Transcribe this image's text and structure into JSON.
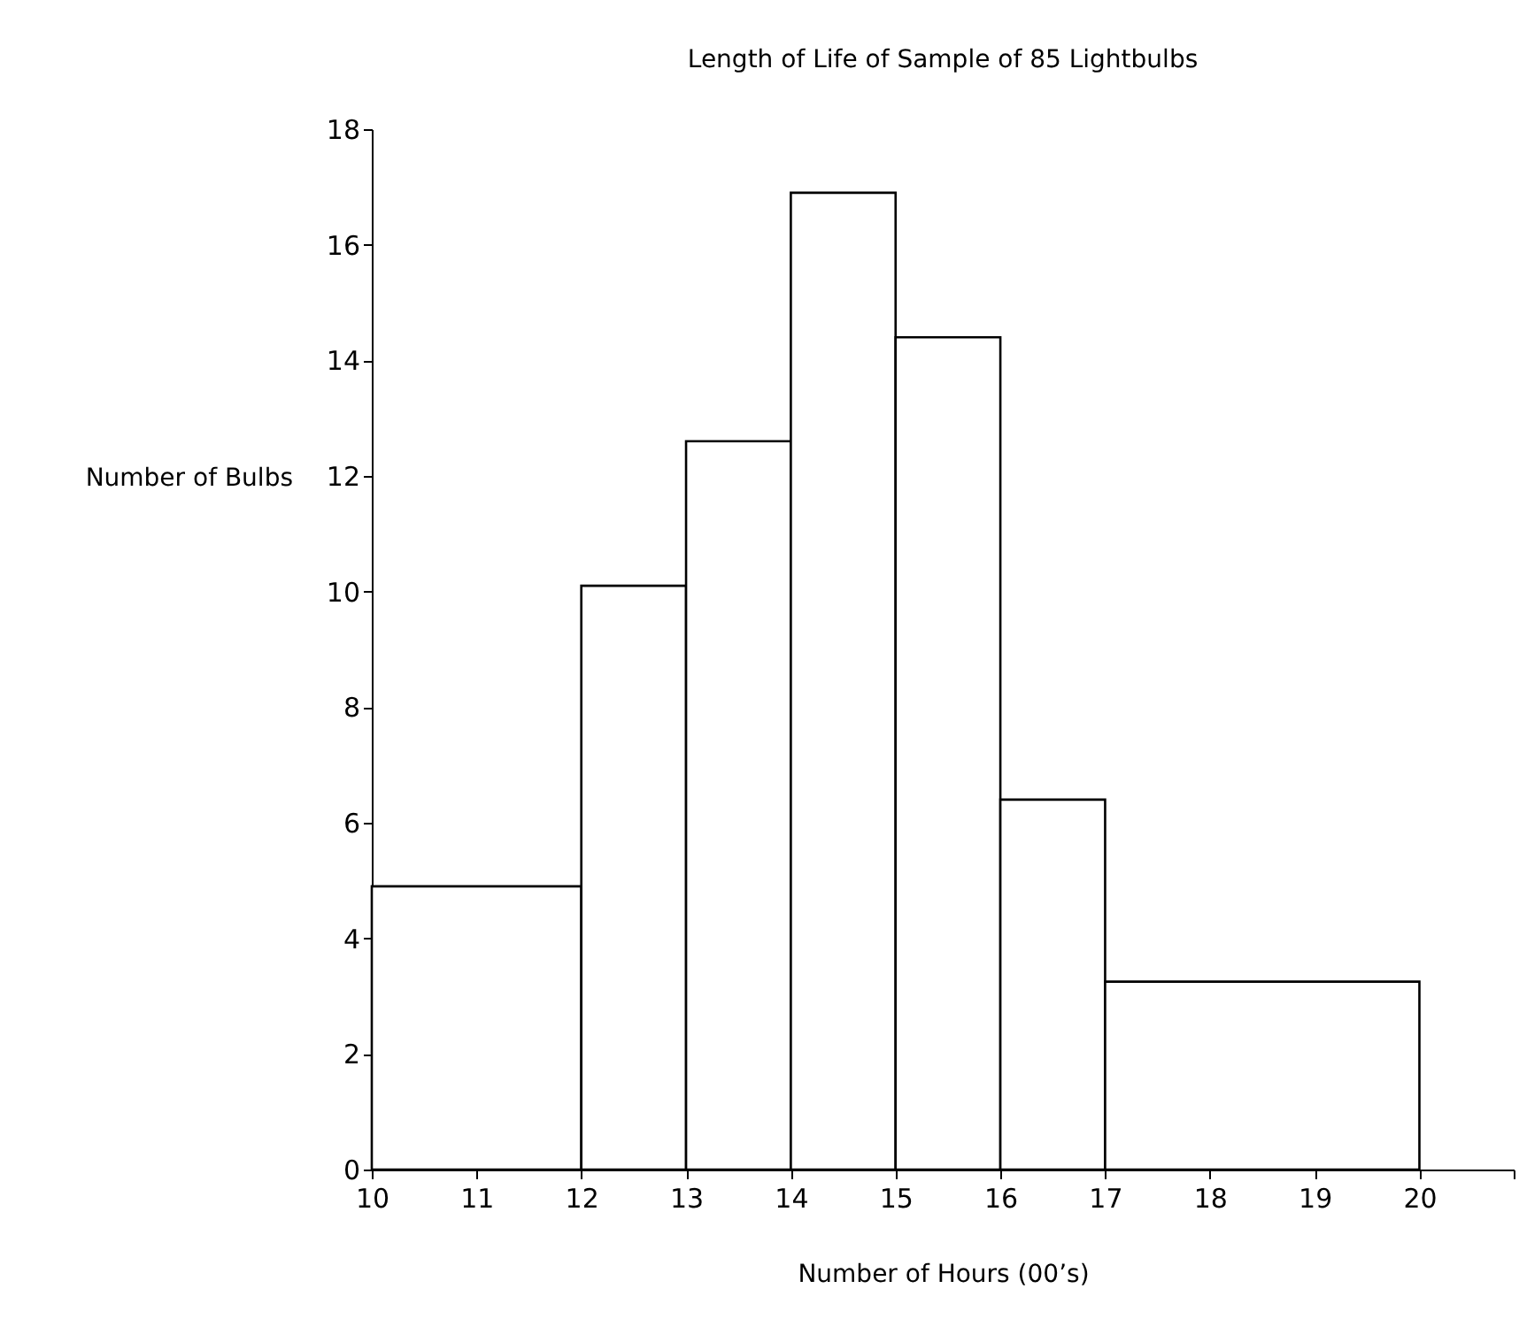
{
  "chart_data": {
    "type": "histogram",
    "title": "Length of Life of Sample of 85 Lightbulbs",
    "xlabel": "Number of Hours (00’s)",
    "ylabel": "Number of Bulbs",
    "bins": [
      10,
      12,
      13,
      14,
      15,
      16,
      17,
      20
    ],
    "values": [
      4.9,
      10.1,
      12.6,
      16.9,
      14.4,
      6.4,
      3.25
    ],
    "color": "#ffffff",
    "xlim": [
      10,
      20.9
    ],
    "xticks": [
      10,
      11,
      12,
      13,
      14,
      15,
      16,
      17,
      18,
      19,
      20,
      {
        "value": 20.9,
        "label": null
      }
    ],
    "ylim": [
      0,
      18
    ],
    "yticks": [
      0,
      2,
      4,
      6,
      8,
      10,
      12,
      14,
      16,
      18
    ],
    "grid": false
  }
}
